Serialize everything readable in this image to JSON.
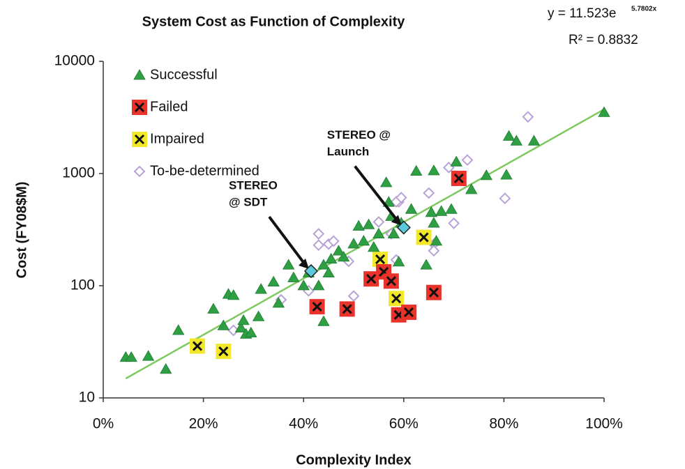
{
  "chart_data": {
    "type": "scatter",
    "title": "System Cost as Function of Complexity",
    "equation": "y = 11.523e",
    "equation_exponent": "5.7802x",
    "r_squared": "R² = 0.8832",
    "x_label": "Complexity Index",
    "y_label": "Cost (FY08$M)",
    "xlim": [
      0,
      100
    ],
    "xticks": [
      {
        "value": 0,
        "label": "0%"
      },
      {
        "value": 20,
        "label": "20%"
      },
      {
        "value": 40,
        "label": "40%"
      },
      {
        "value": 60,
        "label": "60%"
      },
      {
        "value": 80,
        "label": "80%"
      },
      {
        "value": 100,
        "label": "100%"
      }
    ],
    "ylim": [
      10,
      10000
    ],
    "yticks": [
      10,
      100,
      1000,
      10000
    ],
    "log_scale_y": true,
    "legend_position": "upper-left",
    "series": [
      {
        "name": "Successful",
        "marker": "triangle",
        "color": "#2ea043",
        "x": [
          4.5,
          5.6,
          9,
          12.5,
          15,
          22,
          24,
          25,
          26,
          27.5,
          28,
          28.5,
          29.5,
          31,
          31.5,
          34,
          35,
          37,
          38,
          40,
          41,
          43,
          44,
          44,
          45,
          45.5,
          47,
          48,
          50,
          51,
          52,
          53,
          54,
          55,
          56.5,
          57,
          57.5,
          58,
          59,
          59.5,
          61.5,
          62.5,
          64.5,
          65.5,
          66,
          66,
          66.5,
          67.5,
          69.5,
          70.5,
          73.5,
          76.5,
          80.5,
          81,
          82.5,
          86,
          100
        ],
        "values": [
          23,
          23,
          23.5,
          18,
          40,
          62,
          44,
          84,
          82,
          42,
          49,
          37,
          38,
          53,
          93,
          108,
          70,
          153,
          118,
          100,
          130,
          100,
          153,
          48,
          130,
          173,
          204,
          180,
          236,
          340,
          250,
          350,
          220,
          290,
          830,
          555,
          415,
          290,
          163,
          362,
          480,
          1050,
          153,
          450,
          1060,
          362,
          250,
          460,
          480,
          1270,
          720,
          960,
          970,
          2150,
          1950,
          1950,
          3500
        ]
      },
      {
        "name": "Failed",
        "marker": "x-square",
        "color": "#e8322a",
        "x": [
          42.7,
          48.7,
          53.5,
          56,
          57.5,
          59,
          61,
          66,
          71
        ],
        "values": [
          65,
          62,
          115,
          133,
          110,
          55,
          58,
          87,
          905
        ]
      },
      {
        "name": "Impaired",
        "marker": "x-square",
        "color": "#f2e829",
        "x": [
          18.8,
          24,
          55.3,
          58.5,
          64
        ],
        "values": [
          29,
          26,
          172,
          77,
          270
        ]
      },
      {
        "name": "To-be-determined",
        "marker": "diamond",
        "color": "#b9a3d6",
        "x": [
          84.8,
          72.7,
          69,
          59,
          58.5,
          59.5,
          65,
          80.2,
          70,
          66,
          66,
          43,
          43,
          45,
          46,
          50,
          49,
          55,
          57.5,
          58.5,
          35.5,
          41,
          26
        ],
        "values": [
          3200,
          1320,
          1130,
          560,
          560,
          610,
          670,
          600,
          360,
          235,
          205,
          290,
          230,
          235,
          250,
          81,
          165,
          370,
          290,
          170,
          75,
          90,
          40
        ]
      }
    ],
    "stereo_points": {
      "color": "#5bc8dc",
      "x": [
        41.5,
        60
      ],
      "values": [
        135,
        330
      ],
      "labels": [
        [
          "STEREO",
          "@ SDT"
        ],
        [
          "STEREO @",
          "Launch"
        ]
      ]
    },
    "trendline": {
      "color": "#7dc95e",
      "x": [
        4.5,
        100
      ],
      "values": [
        14.9,
        3731
      ]
    }
  }
}
